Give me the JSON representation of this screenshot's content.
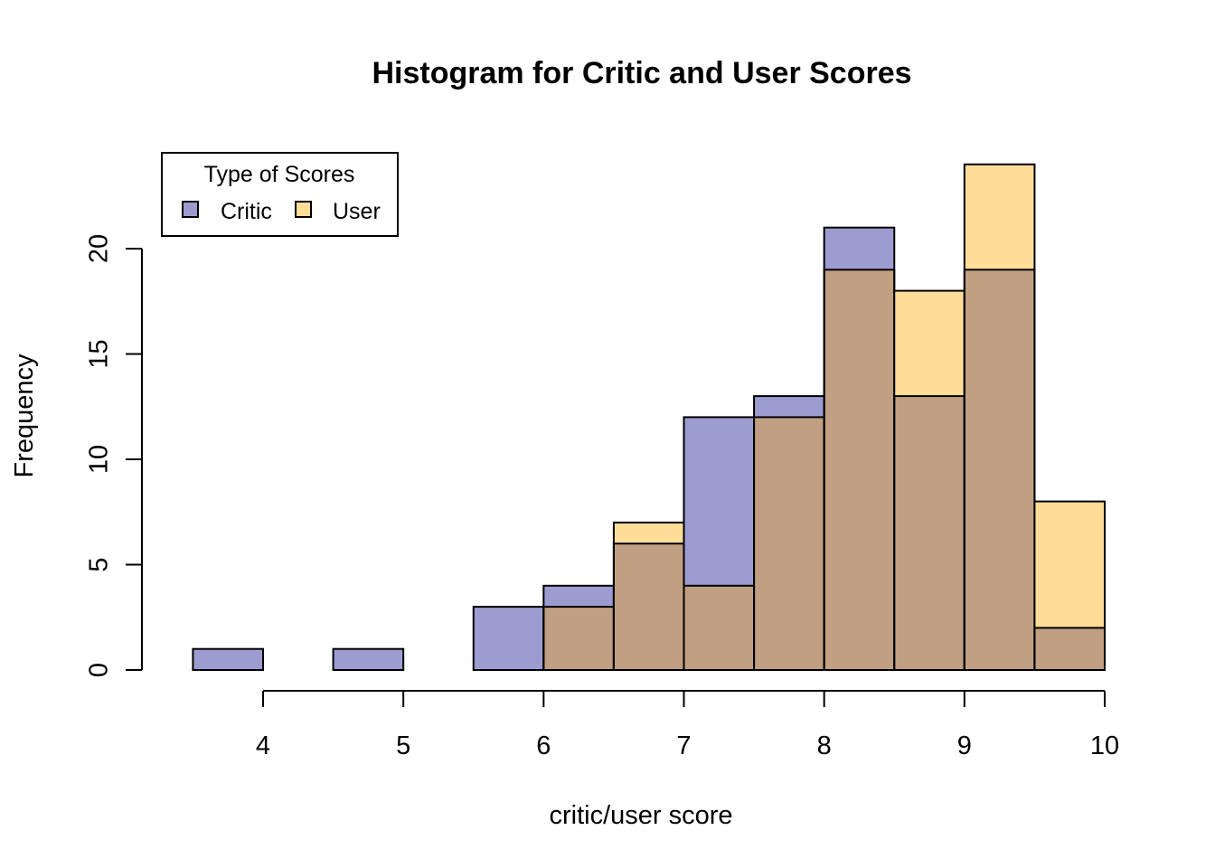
{
  "chart_data": {
    "type": "bar",
    "title": "Histogram for Critic and User Scores",
    "xlabel": "critic/user score",
    "ylabel": "Frequency",
    "xlim": [
      3.5,
      10
    ],
    "ylim": [
      0,
      24
    ],
    "x_ticks": [
      "4",
      "5",
      "6",
      "7",
      "8",
      "9",
      "10"
    ],
    "y_ticks": [
      "0",
      "5",
      "10",
      "15",
      "20"
    ],
    "legend": {
      "title": "Type of Scores",
      "position": "top-left",
      "items": [
        {
          "label": "Critic",
          "color": "#9d9cd1"
        },
        {
          "label": "User",
          "color": "#ffdd99"
        }
      ]
    },
    "overlap_color": "#c19f82",
    "series": [
      {
        "name": "Critic",
        "color": "#9d9cd1",
        "bins": [
          {
            "x0": 3.5,
            "x1": 4.0,
            "value": 1
          },
          {
            "x0": 4.0,
            "x1": 4.5,
            "value": 0
          },
          {
            "x0": 4.5,
            "x1": 5.0,
            "value": 1
          },
          {
            "x0": 5.0,
            "x1": 5.5,
            "value": 0
          },
          {
            "x0": 5.5,
            "x1": 6.0,
            "value": 3
          },
          {
            "x0": 6.0,
            "x1": 6.5,
            "value": 4
          },
          {
            "x0": 6.5,
            "x1": 7.0,
            "value": 6
          },
          {
            "x0": 7.0,
            "x1": 7.5,
            "value": 12
          },
          {
            "x0": 7.5,
            "x1": 8.0,
            "value": 13
          },
          {
            "x0": 8.0,
            "x1": 8.5,
            "value": 21
          },
          {
            "x0": 8.5,
            "x1": 9.0,
            "value": 13
          },
          {
            "x0": 9.0,
            "x1": 9.5,
            "value": 19
          },
          {
            "x0": 9.5,
            "x1": 10.0,
            "value": 2
          }
        ]
      },
      {
        "name": "User",
        "color": "#ffdd99",
        "bins": [
          {
            "x0": 6.0,
            "x1": 6.5,
            "value": 3
          },
          {
            "x0": 6.5,
            "x1": 7.0,
            "value": 7
          },
          {
            "x0": 7.0,
            "x1": 7.5,
            "value": 4
          },
          {
            "x0": 7.5,
            "x1": 8.0,
            "value": 12
          },
          {
            "x0": 8.0,
            "x1": 8.5,
            "value": 19
          },
          {
            "x0": 8.5,
            "x1": 9.0,
            "value": 18
          },
          {
            "x0": 9.0,
            "x1": 9.5,
            "value": 24
          },
          {
            "x0": 9.5,
            "x1": 10.0,
            "value": 8
          }
        ]
      }
    ]
  }
}
